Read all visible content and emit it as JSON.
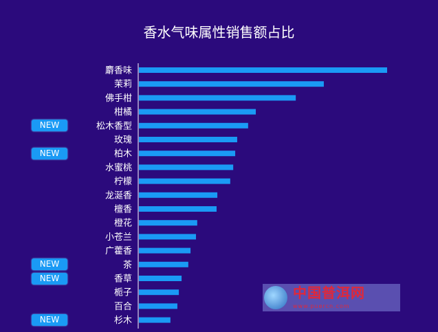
{
  "chart_data": {
    "type": "bar",
    "orientation": "horizontal",
    "title": "香水气味属性销售额占比",
    "xlabel": "",
    "ylabel": "",
    "value_scale": "relative (top bar = 100)",
    "xlim": [
      0,
      100
    ],
    "grid": false,
    "categories": [
      "麝香味",
      "茉莉",
      "佛手柑",
      "柑橘",
      "松木香型",
      "玫瑰",
      "柏木",
      "水蜜桃",
      "柠檬",
      "龙涎香",
      "檀香",
      "橙花",
      "小苍兰",
      "广藿香",
      "茶",
      "香草",
      "栀子",
      "百合",
      "杉木"
    ],
    "values": [
      100,
      74.5,
      63.2,
      47.1,
      44.0,
      39.6,
      38.8,
      38.0,
      36.8,
      31.6,
      31.3,
      23.5,
      23.0,
      20.8,
      19.9,
      17.2,
      16.1,
      15.5,
      12.7
    ],
    "new_flags": [
      false,
      false,
      false,
      false,
      true,
      false,
      true,
      false,
      false,
      false,
      false,
      false,
      false,
      false,
      true,
      true,
      false,
      false,
      true
    ],
    "badge_label": "NEW",
    "bar_color": "#1a9af5",
    "background": "#2b0a7c"
  },
  "watermark": {
    "name": "中国普洱网",
    "url": "www.puercn.com",
    "globe_text": "中国普洱网"
  }
}
